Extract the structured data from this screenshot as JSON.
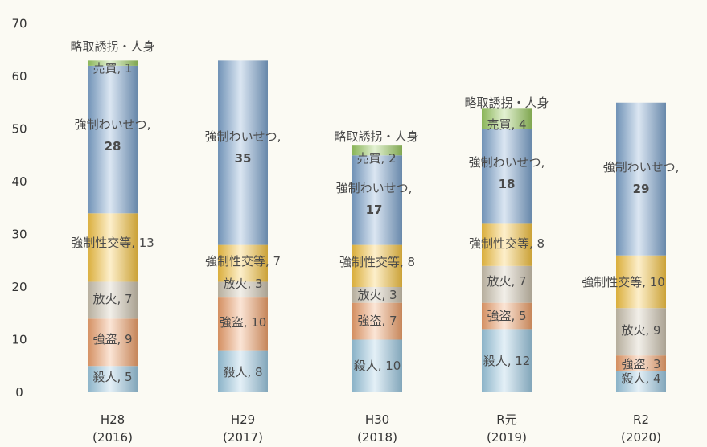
{
  "colors": {
    "background": "#fbfaf3",
    "殺人": "#9ecbe3",
    "強盗": "#f1a36e",
    "放火": "#cfc6b2",
    "強制性交等": "#f8c644",
    "強制わいせつ": "#7fa6cf",
    "略取誘拐・人身売買": "#9ccc63"
  },
  "chart_data": {
    "type": "bar",
    "stacked": true,
    "ylim": [
      0,
      70
    ],
    "yticks": [
      "0",
      "10",
      "20",
      "30",
      "40",
      "50",
      "60",
      "70"
    ],
    "categories": [
      "H28",
      "H29",
      "H30",
      "R元",
      "R2"
    ],
    "category_sublabels": [
      "(2016)",
      "(2017)",
      "(2018)",
      "(2019)",
      "(2020)"
    ],
    "series": [
      {
        "name": "殺人",
        "values": [
          5,
          8,
          10,
          12,
          4
        ],
        "labels": [
          "殺人, 5",
          "殺人, 8",
          "殺人, 10",
          "殺人, 12",
          "殺人, 4"
        ]
      },
      {
        "name": "強盗",
        "values": [
          9,
          10,
          7,
          5,
          3
        ],
        "labels": [
          "強盗, 9",
          "強盗, 10",
          "強盗, 7",
          "強盗, 5",
          "強盗, 3"
        ]
      },
      {
        "name": "放火",
        "values": [
          7,
          3,
          3,
          7,
          9
        ],
        "labels": [
          "放火, 7",
          "放火, 3",
          "放火, 3",
          "放火, 7",
          "放火, 9"
        ]
      },
      {
        "name": "強制性交等",
        "values": [
          13,
          7,
          8,
          8,
          10
        ],
        "labels": [
          "強制性交等, 13",
          "強制性交等, 7",
          "強制性交等, 8",
          "強制性交等, 8",
          "強制性交等, 10"
        ]
      },
      {
        "name": "強制わいせつ",
        "values": [
          28,
          35,
          17,
          18,
          29
        ],
        "labels_line1": [
          "強制わいせつ,",
          "強制わいせつ,",
          "強制わいせつ,",
          "強制わいせつ,",
          "強制わいせつ,"
        ],
        "labels_line2": [
          "28",
          "35",
          "17",
          "18",
          "29"
        ]
      },
      {
        "name": "略取誘拐・人身売買",
        "values": [
          1,
          0,
          2,
          4,
          0
        ],
        "labels_line1": [
          "略取誘拐・人身",
          "",
          "略取誘拐・人身",
          "略取誘拐・人身",
          ""
        ],
        "labels_line2": [
          "売買, 1",
          "",
          "売買, 2",
          "売買, 4",
          ""
        ]
      }
    ]
  }
}
